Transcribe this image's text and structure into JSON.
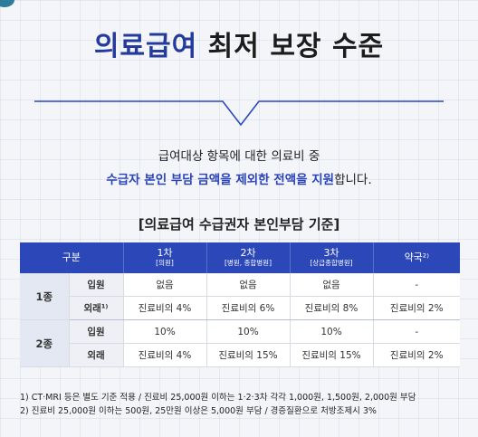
{
  "title": {
    "highlight": "의료급여",
    "rest": "최저 보장 수준"
  },
  "lead": {
    "line1": "급여대상 항목에 대한 의료비 중",
    "line2_emph": "수급자 본인 부담 금액을 제외한 전액을 지원",
    "line2_tail": "합니다."
  },
  "table_title": "[의료급여 수급권자 본인부담 기준]",
  "table": {
    "col_group": "구분",
    "cols": [
      {
        "label": "1차",
        "sub": "[의원]"
      },
      {
        "label": "2차",
        "sub": "[병원, 종합병원]"
      },
      {
        "label": "3차",
        "sub": "[상급종합병원]"
      },
      {
        "label": "약국²⁾",
        "sub": ""
      }
    ],
    "groups": [
      {
        "name": "1종",
        "rows": [
          {
            "kind": "입원",
            "cells": [
              "없음",
              "없음",
              "없음",
              "-"
            ]
          },
          {
            "kind": "외래¹⁾",
            "cells": [
              "진료비의 4%",
              "진료비의 6%",
              "진료비의 8%",
              "진료비의 2%"
            ]
          }
        ]
      },
      {
        "name": "2종",
        "rows": [
          {
            "kind": "입원",
            "cells": [
              "10%",
              "10%",
              "10%",
              "-"
            ]
          },
          {
            "kind": "외래",
            "cells": [
              "진료비의 4%",
              "진료비의 15%",
              "진료비의 15%",
              "진료비의 2%"
            ]
          }
        ]
      }
    ]
  },
  "notes": [
    "1) CT·MRI 등은 별도 기준 적용 / 진료비 25,000원 이하는 1·2·3차 각각 1,000원, 1,500원, 2,000원 부담",
    "2) 진료비 25,000원 이하는 500원, 25만원 이상은 5,000원 부담 / 경증질환으로 처방조제시 3%"
  ]
}
